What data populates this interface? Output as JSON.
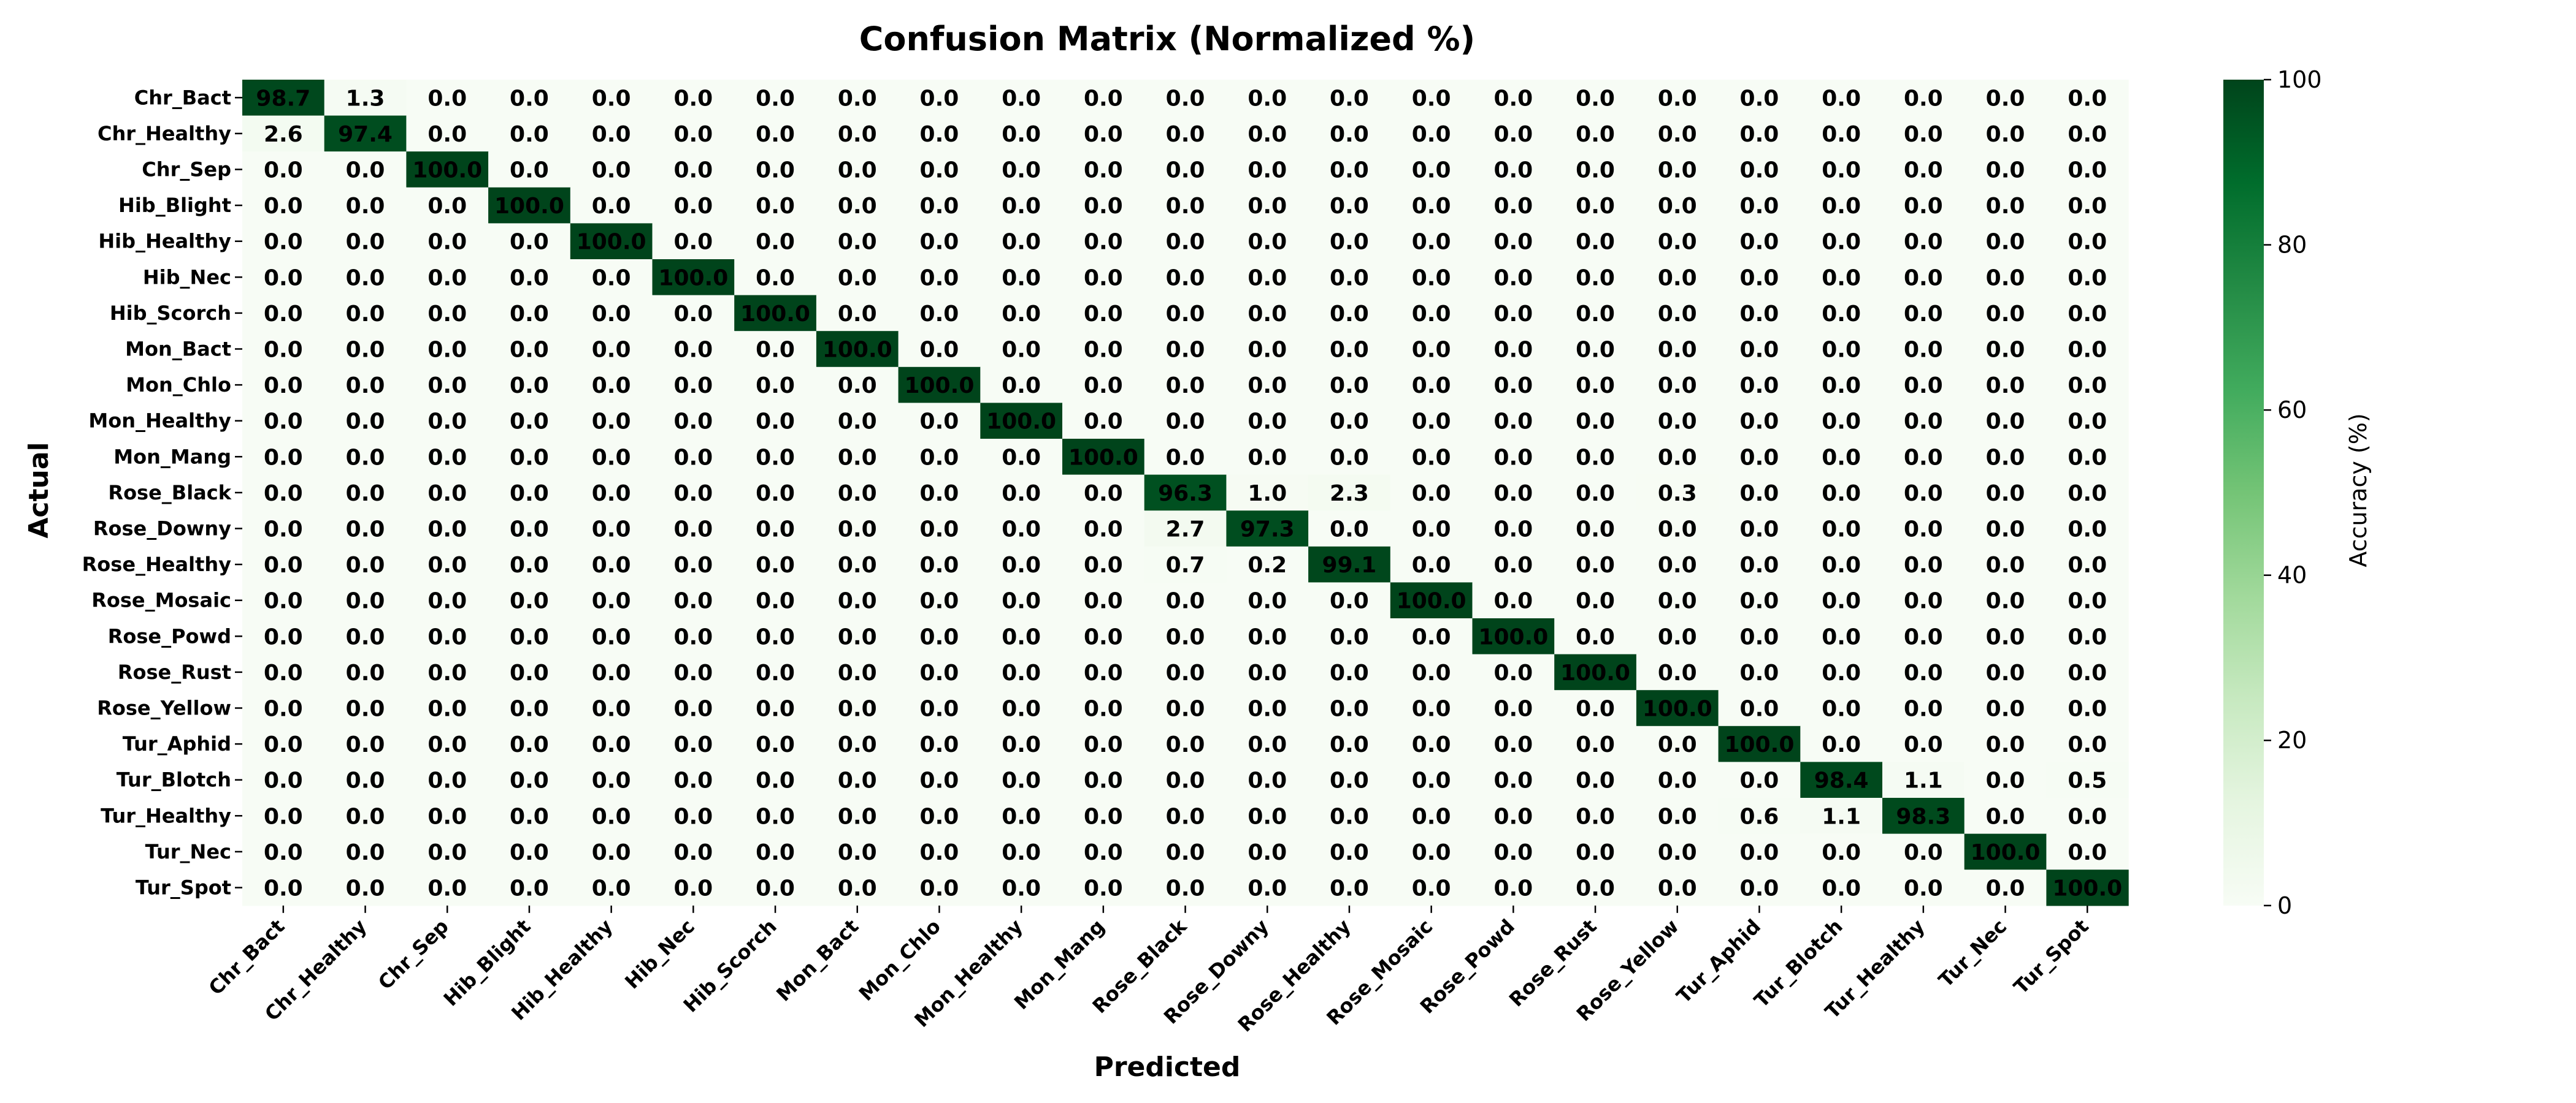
{
  "chart_data": {
    "type": "heatmap",
    "title": "Confusion Matrix (Normalized %)",
    "xlabel": "Predicted",
    "ylabel": "Actual",
    "row_labels": [
      "Chr_Bact",
      "Chr_Healthy",
      "Chr_Sep",
      "Hib_Blight",
      "Hib_Healthy",
      "Hib_Nec",
      "Hib_Scorch",
      "Mon_Bact",
      "Mon_Chlo",
      "Mon_Healthy",
      "Mon_Mang",
      "Rose_Black",
      "Rose_Downy",
      "Rose_Healthy",
      "Rose_Mosaic",
      "Rose_Powd",
      "Rose_Rust",
      "Rose_Yellow",
      "Tur_Aphid",
      "Tur_Blotch",
      "Tur_Healthy",
      "Tur_Nec",
      "Tur_Spot"
    ],
    "col_labels": [
      "Chr_Bact",
      "Chr_Healthy",
      "Chr_Sep",
      "Hib_Blight",
      "Hib_Healthy",
      "Hib_Nec",
      "Hib_Scorch",
      "Mon_Bact",
      "Mon_Chlo",
      "Mon_Healthy",
      "Mon_Mang",
      "Rose_Black",
      "Rose_Downy",
      "Rose_Healthy",
      "Rose_Mosaic",
      "Rose_Powd",
      "Rose_Rust",
      "Rose_Yellow",
      "Tur_Aphid",
      "Tur_Blotch",
      "Tur_Healthy",
      "Tur_Nec",
      "Tur_Spot"
    ],
    "values": [
      [
        98.7,
        1.3,
        0,
        0,
        0,
        0,
        0,
        0,
        0,
        0,
        0,
        0,
        0,
        0,
        0,
        0,
        0,
        0,
        0,
        0,
        0,
        0,
        0
      ],
      [
        2.6,
        97.4,
        0,
        0,
        0,
        0,
        0,
        0,
        0,
        0,
        0,
        0,
        0,
        0,
        0,
        0,
        0,
        0,
        0,
        0,
        0,
        0,
        0
      ],
      [
        0,
        0,
        100,
        0,
        0,
        0,
        0,
        0,
        0,
        0,
        0,
        0,
        0,
        0,
        0,
        0,
        0,
        0,
        0,
        0,
        0,
        0,
        0
      ],
      [
        0,
        0,
        0,
        100,
        0,
        0,
        0,
        0,
        0,
        0,
        0,
        0,
        0,
        0,
        0,
        0,
        0,
        0,
        0,
        0,
        0,
        0,
        0
      ],
      [
        0,
        0,
        0,
        0,
        100,
        0,
        0,
        0,
        0,
        0,
        0,
        0,
        0,
        0,
        0,
        0,
        0,
        0,
        0,
        0,
        0,
        0,
        0
      ],
      [
        0,
        0,
        0,
        0,
        0,
        100,
        0,
        0,
        0,
        0,
        0,
        0,
        0,
        0,
        0,
        0,
        0,
        0,
        0,
        0,
        0,
        0,
        0
      ],
      [
        0,
        0,
        0,
        0,
        0,
        0,
        100,
        0,
        0,
        0,
        0,
        0,
        0,
        0,
        0,
        0,
        0,
        0,
        0,
        0,
        0,
        0,
        0
      ],
      [
        0,
        0,
        0,
        0,
        0,
        0,
        0,
        100,
        0,
        0,
        0,
        0,
        0,
        0,
        0,
        0,
        0,
        0,
        0,
        0,
        0,
        0,
        0
      ],
      [
        0,
        0,
        0,
        0,
        0,
        0,
        0,
        0,
        100,
        0,
        0,
        0,
        0,
        0,
        0,
        0,
        0,
        0,
        0,
        0,
        0,
        0,
        0
      ],
      [
        0,
        0,
        0,
        0,
        0,
        0,
        0,
        0,
        0,
        100,
        0,
        0,
        0,
        0,
        0,
        0,
        0,
        0,
        0,
        0,
        0,
        0,
        0
      ],
      [
        0,
        0,
        0,
        0,
        0,
        0,
        0,
        0,
        0,
        0,
        100,
        0,
        0,
        0,
        0,
        0,
        0,
        0,
        0,
        0,
        0,
        0,
        0
      ],
      [
        0,
        0,
        0,
        0,
        0,
        0,
        0,
        0,
        0,
        0,
        0,
        96.3,
        1.0,
        2.3,
        0,
        0,
        0,
        0.3,
        0,
        0,
        0,
        0,
        0
      ],
      [
        0,
        0,
        0,
        0,
        0,
        0,
        0,
        0,
        0,
        0,
        0,
        2.7,
        97.3,
        0,
        0,
        0,
        0,
        0,
        0,
        0,
        0,
        0,
        0
      ],
      [
        0,
        0,
        0,
        0,
        0,
        0,
        0,
        0,
        0,
        0,
        0,
        0.7,
        0.2,
        99.1,
        0,
        0,
        0,
        0,
        0,
        0,
        0,
        0,
        0
      ],
      [
        0,
        0,
        0,
        0,
        0,
        0,
        0,
        0,
        0,
        0,
        0,
        0,
        0,
        0,
        100,
        0,
        0,
        0,
        0,
        0,
        0,
        0,
        0
      ],
      [
        0,
        0,
        0,
        0,
        0,
        0,
        0,
        0,
        0,
        0,
        0,
        0,
        0,
        0,
        0,
        100,
        0,
        0,
        0,
        0,
        0,
        0,
        0
      ],
      [
        0,
        0,
        0,
        0,
        0,
        0,
        0,
        0,
        0,
        0,
        0,
        0,
        0,
        0,
        0,
        0,
        100,
        0,
        0,
        0,
        0,
        0,
        0
      ],
      [
        0,
        0,
        0,
        0,
        0,
        0,
        0,
        0,
        0,
        0,
        0,
        0,
        0,
        0,
        0,
        0,
        0,
        100,
        0,
        0,
        0,
        0,
        0
      ],
      [
        0,
        0,
        0,
        0,
        0,
        0,
        0,
        0,
        0,
        0,
        0,
        0,
        0,
        0,
        0,
        0,
        0,
        0,
        100,
        0,
        0,
        0,
        0
      ],
      [
        0,
        0,
        0,
        0,
        0,
        0,
        0,
        0,
        0,
        0,
        0,
        0,
        0,
        0,
        0,
        0,
        0,
        0,
        0,
        98.4,
        1.1,
        0,
        0.5
      ],
      [
        0,
        0,
        0,
        0,
        0,
        0,
        0,
        0,
        0,
        0,
        0,
        0,
        0,
        0,
        0,
        0,
        0,
        0,
        0.6,
        1.1,
        98.3,
        0,
        0
      ],
      [
        0,
        0,
        0,
        0,
        0,
        0,
        0,
        0,
        0,
        0,
        0,
        0,
        0,
        0,
        0,
        0,
        0,
        0,
        0,
        0,
        0,
        100,
        0
      ],
      [
        0,
        0,
        0,
        0,
        0,
        0,
        0,
        0,
        0,
        0,
        0,
        0,
        0,
        0,
        0,
        0,
        0,
        0,
        0,
        0,
        0,
        0,
        100
      ]
    ],
    "value_format": "one decimal",
    "colorbar": {
      "label": "Accuracy (%)",
      "range": [
        0,
        100
      ],
      "ticks": [
        0,
        20,
        40,
        60,
        80,
        100
      ],
      "colormap": "Greens",
      "low_color": "#f7fcf5",
      "high_color": "#00441b"
    },
    "grid": false
  }
}
